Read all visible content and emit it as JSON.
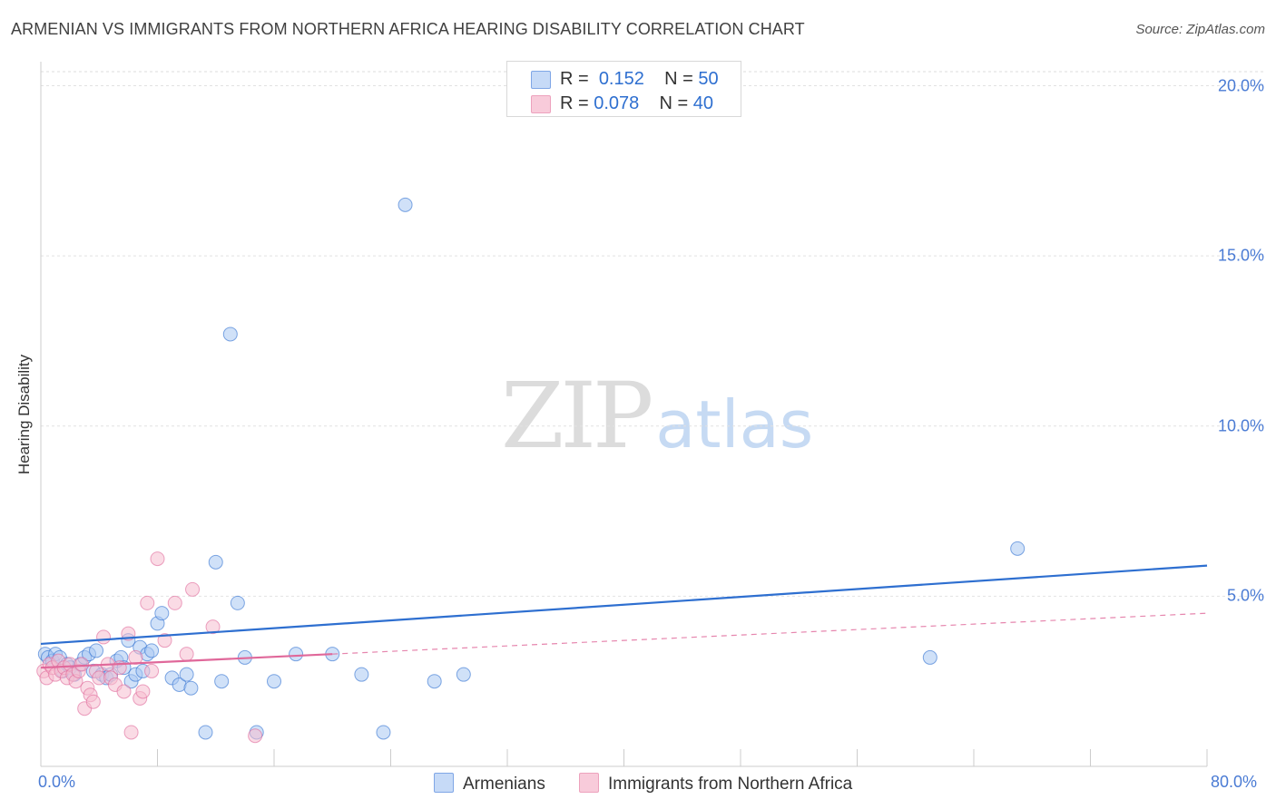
{
  "header": {
    "title": "ARMENIAN VS IMMIGRANTS FROM NORTHERN AFRICA HEARING DISABILITY CORRELATION CHART",
    "source": "Source: ZipAtlas.com"
  },
  "watermark": {
    "part1": "ZIP",
    "part2": "atlas"
  },
  "legend": {
    "rows": [
      {
        "r_label": "R =",
        "r_value": "0.152",
        "n_label": "N =",
        "n_value": "50",
        "color": "#aac8f2"
      },
      {
        "r_label": "R =",
        "r_value": "0.078",
        "n_label": "N =",
        "n_value": "40",
        "color": "#f6bdd0"
      }
    ]
  },
  "bottom_legend": {
    "series1": "Armenians",
    "series2": "Immigrants from Northern Africa"
  },
  "chart_data": {
    "type": "scatter",
    "title": "ARMENIAN VS IMMIGRANTS FROM NORTHERN AFRICA HEARING DISABILITY CORRELATION CHART",
    "xlabel": "",
    "ylabel": "Hearing Disability",
    "xlim": [
      0,
      80
    ],
    "ylim": [
      0,
      20.6
    ],
    "y_ticks": [
      5,
      10,
      15,
      20
    ],
    "y_tick_labels": [
      "5.0%",
      "10.0%",
      "15.0%",
      "20.0%"
    ],
    "x_tick_labels": [
      "0.0%",
      "80.0%"
    ],
    "x_tick_marks": [
      0,
      8,
      16,
      24,
      32,
      40,
      48,
      56,
      64,
      72,
      80
    ],
    "grid": true,
    "series": [
      {
        "name": "Armenians",
        "color": "#2e6fd0",
        "fill": "#aac8f2",
        "R": 0.152,
        "N": 50,
        "trend": {
          "x": [
            0,
            80
          ],
          "y": [
            3.6,
            5.9
          ],
          "style": "solid"
        },
        "points": [
          [
            0.3,
            3.3
          ],
          [
            0.5,
            3.2
          ],
          [
            0.8,
            3.1
          ],
          [
            1.0,
            3.3
          ],
          [
            1.3,
            3.2
          ],
          [
            1.5,
            2.8
          ],
          [
            1.8,
            3.0
          ],
          [
            2.0,
            2.9
          ],
          [
            2.3,
            2.7
          ],
          [
            2.7,
            3.0
          ],
          [
            3.0,
            3.2
          ],
          [
            3.3,
            3.3
          ],
          [
            3.6,
            2.8
          ],
          [
            3.8,
            3.4
          ],
          [
            4.2,
            2.7
          ],
          [
            4.5,
            2.6
          ],
          [
            4.8,
            2.7
          ],
          [
            5.2,
            3.1
          ],
          [
            5.5,
            3.2
          ],
          [
            5.7,
            2.9
          ],
          [
            6.0,
            3.7
          ],
          [
            6.2,
            2.5
          ],
          [
            6.5,
            2.7
          ],
          [
            6.8,
            3.5
          ],
          [
            7.0,
            2.8
          ],
          [
            7.3,
            3.3
          ],
          [
            7.6,
            3.4
          ],
          [
            8.0,
            4.2
          ],
          [
            8.3,
            4.5
          ],
          [
            9.0,
            2.6
          ],
          [
            9.5,
            2.4
          ],
          [
            10.0,
            2.7
          ],
          [
            10.3,
            2.3
          ],
          [
            11.3,
            1.0
          ],
          [
            12.0,
            6.0
          ],
          [
            12.4,
            2.5
          ],
          [
            13.0,
            12.7
          ],
          [
            13.5,
            4.8
          ],
          [
            14.0,
            3.2
          ],
          [
            14.8,
            1.0
          ],
          [
            16.0,
            2.5
          ],
          [
            17.5,
            3.3
          ],
          [
            20.0,
            3.3
          ],
          [
            22.0,
            2.7
          ],
          [
            23.5,
            1.0
          ],
          [
            25.0,
            16.5
          ],
          [
            27.0,
            2.5
          ],
          [
            29.0,
            2.7
          ],
          [
            67.0,
            6.4
          ],
          [
            61.0,
            3.2
          ]
        ]
      },
      {
        "name": "Immigrants from Northern Africa",
        "color": "#e0689a",
        "fill": "#f6bdd0",
        "R": 0.078,
        "N": 40,
        "trend": {
          "x": [
            0,
            20
          ],
          "y": [
            2.9,
            3.3
          ],
          "style": "solid",
          "dashed_extension": {
            "x": [
              20,
              80
            ],
            "y": [
              3.3,
              4.5
            ]
          }
        },
        "points": [
          [
            0.2,
            2.8
          ],
          [
            0.4,
            2.6
          ],
          [
            0.6,
            3.0
          ],
          [
            0.8,
            2.9
          ],
          [
            1.0,
            2.7
          ],
          [
            1.2,
            3.1
          ],
          [
            1.4,
            2.8
          ],
          [
            1.6,
            2.9
          ],
          [
            1.8,
            2.6
          ],
          [
            2.0,
            3.0
          ],
          [
            2.2,
            2.7
          ],
          [
            2.4,
            2.5
          ],
          [
            2.6,
            2.8
          ],
          [
            2.8,
            3.0
          ],
          [
            3.0,
            1.7
          ],
          [
            3.2,
            2.3
          ],
          [
            3.4,
            2.1
          ],
          [
            3.6,
            1.9
          ],
          [
            3.8,
            2.8
          ],
          [
            4.0,
            2.6
          ],
          [
            4.3,
            3.8
          ],
          [
            4.6,
            3.0
          ],
          [
            4.8,
            2.6
          ],
          [
            5.1,
            2.4
          ],
          [
            5.4,
            2.9
          ],
          [
            5.7,
            2.2
          ],
          [
            6.0,
            3.9
          ],
          [
            6.2,
            1.0
          ],
          [
            6.5,
            3.2
          ],
          [
            6.8,
            2.0
          ],
          [
            7.0,
            2.2
          ],
          [
            7.3,
            4.8
          ],
          [
            7.6,
            2.8
          ],
          [
            8.0,
            6.1
          ],
          [
            8.5,
            3.7
          ],
          [
            9.2,
            4.8
          ],
          [
            10.0,
            3.3
          ],
          [
            10.4,
            5.2
          ],
          [
            11.8,
            4.1
          ],
          [
            14.7,
            0.9
          ]
        ]
      }
    ]
  }
}
